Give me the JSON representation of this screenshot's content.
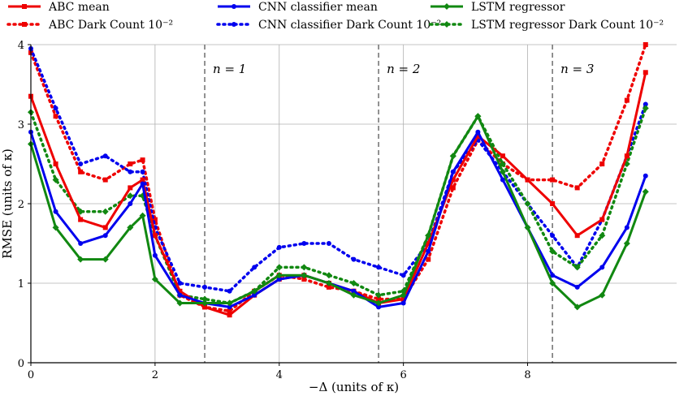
{
  "chart_data": {
    "type": "line",
    "xlabel": "−Δ (units of κ)",
    "ylabel": "RMSE (units of κ)",
    "xlim": [
      0,
      10.4
    ],
    "ylim": [
      0,
      4
    ],
    "xticks": [
      "0",
      "2",
      "4",
      "6",
      "8"
    ],
    "yticks": [
      "0",
      "1",
      "2",
      "3",
      "4"
    ],
    "grid": true,
    "legend_position": "top, three columns",
    "vlines": [
      {
        "x": 2.8,
        "label": "n = 1"
      },
      {
        "x": 5.6,
        "label": "n = 2"
      },
      {
        "x": 8.4,
        "label": "n = 3"
      }
    ],
    "x": [
      0.0,
      0.4,
      0.8,
      1.2,
      1.6,
      1.8,
      2.0,
      2.4,
      2.8,
      3.2,
      3.6,
      4.0,
      4.4,
      4.8,
      5.2,
      5.6,
      6.0,
      6.4,
      6.8,
      7.2,
      7.6,
      8.0,
      8.4,
      8.8,
      9.2,
      9.6,
      9.9
    ],
    "series": [
      {
        "name": "ABC mean",
        "color": "#ee0000",
        "style": "solid",
        "marker": "square",
        "values": [
          3.35,
          2.5,
          1.8,
          1.7,
          2.2,
          2.3,
          1.6,
          0.9,
          0.7,
          0.6,
          0.85,
          1.05,
          1.1,
          1.0,
          0.9,
          0.75,
          0.8,
          1.5,
          2.3,
          2.85,
          2.6,
          2.3,
          2.0,
          1.6,
          1.8,
          2.6,
          3.65
        ]
      },
      {
        "name": "CNN classifier mean",
        "color": "#0000ee",
        "style": "solid",
        "marker": "circle",
        "values": [
          2.9,
          1.9,
          1.5,
          1.6,
          2.0,
          2.25,
          1.35,
          0.85,
          0.75,
          0.7,
          0.85,
          1.05,
          1.1,
          1.0,
          0.9,
          0.7,
          0.75,
          1.4,
          2.4,
          2.9,
          2.3,
          1.7,
          1.1,
          0.95,
          1.2,
          1.7,
          2.35
        ]
      },
      {
        "name": "LSTM regressor",
        "color": "#118811",
        "style": "solid",
        "marker": "diamond",
        "values": [
          2.75,
          1.7,
          1.3,
          1.3,
          1.7,
          1.85,
          1.05,
          0.75,
          0.75,
          0.75,
          0.9,
          1.1,
          1.1,
          1.0,
          0.85,
          0.75,
          0.85,
          1.6,
          2.6,
          3.1,
          2.4,
          1.7,
          1.0,
          0.7,
          0.85,
          1.5,
          2.15
        ]
      },
      {
        "name": "ABC Dark Count 10⁻²",
        "color": "#ee0000",
        "style": "dotted",
        "marker": "square",
        "values": [
          3.9,
          3.1,
          2.4,
          2.3,
          2.5,
          2.55,
          1.8,
          0.85,
          0.7,
          0.65,
          0.9,
          1.1,
          1.05,
          0.95,
          0.9,
          0.8,
          0.8,
          1.3,
          2.2,
          2.8,
          2.5,
          2.3,
          2.3,
          2.2,
          2.5,
          3.3,
          4.0
        ]
      },
      {
        "name": "CNN classifier Dark Count 10⁻²",
        "color": "#0000ee",
        "style": "dotted",
        "marker": "circle",
        "values": [
          3.95,
          3.2,
          2.5,
          2.6,
          2.4,
          2.4,
          1.7,
          1.0,
          0.95,
          0.9,
          1.2,
          1.45,
          1.5,
          1.5,
          1.3,
          1.2,
          1.1,
          1.5,
          2.4,
          2.8,
          2.4,
          2.0,
          1.6,
          1.2,
          1.8,
          2.6,
          3.25
        ]
      },
      {
        "name": "LSTM regressor Dark Count 10⁻²",
        "color": "#118811",
        "style": "dotted",
        "marker": "diamond",
        "values": [
          3.15,
          2.3,
          1.9,
          1.9,
          2.1,
          2.1,
          1.6,
          0.85,
          0.8,
          0.75,
          0.9,
          1.2,
          1.2,
          1.1,
          1.0,
          0.85,
          0.9,
          1.6,
          2.6,
          3.1,
          2.5,
          2.0,
          1.4,
          1.2,
          1.6,
          2.5,
          3.2
        ]
      }
    ]
  }
}
